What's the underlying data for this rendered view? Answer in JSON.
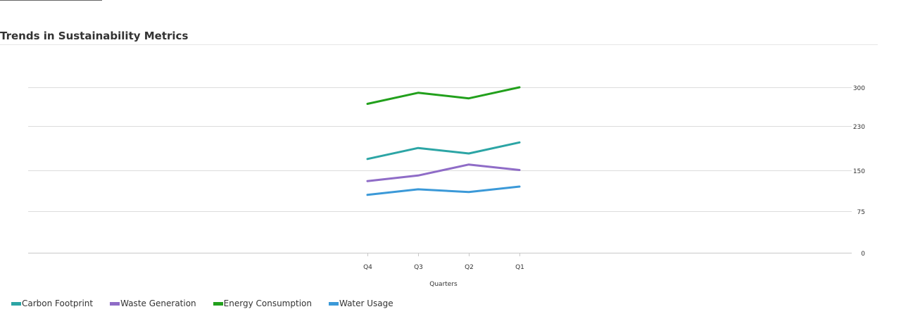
{
  "chart_data": {
    "type": "line",
    "title": "Trends in Sustainability Metrics",
    "xlabel": "Quarters",
    "ylabel": "",
    "categories": [
      "Q4",
      "Q3",
      "Q2",
      "Q1"
    ],
    "ylim": [
      0,
      300
    ],
    "yticks": [
      0,
      75,
      150,
      230,
      300
    ],
    "y_axis_position": "right",
    "grid": true,
    "legend_position": "bottom-left",
    "series": [
      {
        "name": "Carbon Footprint",
        "color": "#2ca5a5",
        "values": [
          170,
          190,
          180,
          200
        ]
      },
      {
        "name": "Waste Generation",
        "color": "#8f6cc7",
        "values": [
          130,
          140,
          160,
          150
        ]
      },
      {
        "name": "Energy Consumption",
        "color": "#22a01c",
        "values": [
          270,
          290,
          280,
          300
        ]
      },
      {
        "name": "Water Usage",
        "color": "#3b99d8",
        "values": [
          105,
          115,
          110,
          120
        ]
      }
    ]
  }
}
